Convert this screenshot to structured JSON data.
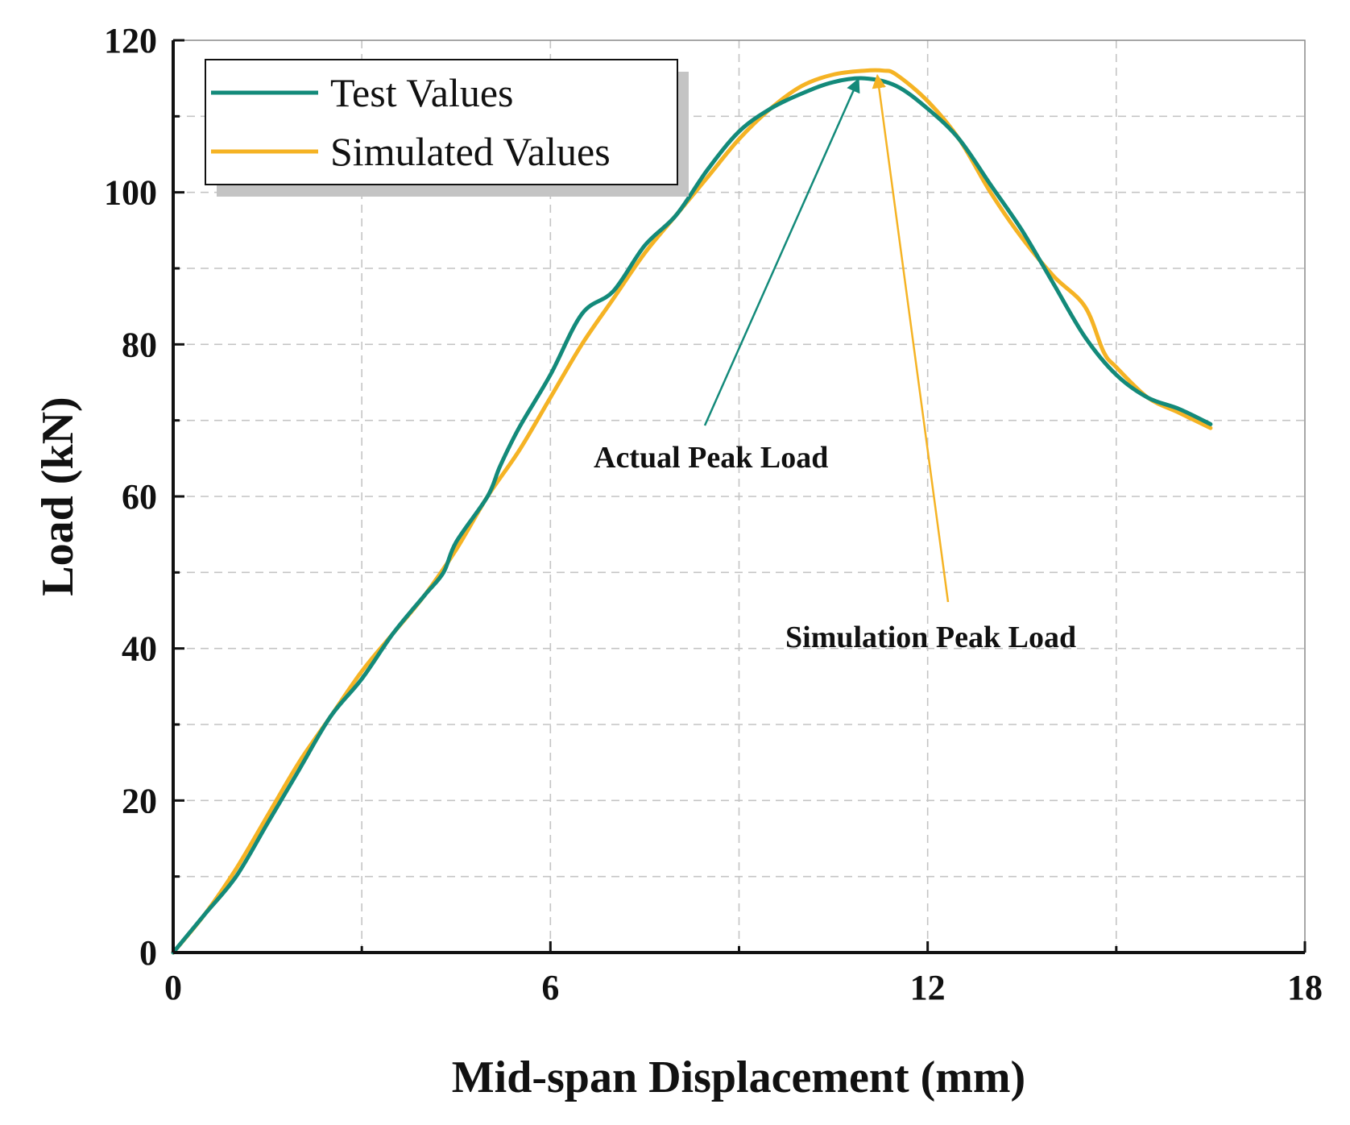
{
  "chart_data": {
    "type": "line",
    "xlabel": "Mid-span Displacement (mm)",
    "ylabel": "Load (kN)",
    "xlim": [
      0,
      18
    ],
    "ylim": [
      0,
      120
    ],
    "xticks": [
      0,
      6,
      12,
      18
    ],
    "yticks": [
      0,
      20,
      40,
      60,
      80,
      100,
      120
    ],
    "grid": true,
    "legend_position": "top-left",
    "series": [
      {
        "name": "Test Values",
        "color": "#138a7a",
        "x": [
          0,
          0.5,
          1.0,
          1.5,
          2.0,
          2.5,
          3.0,
          3.5,
          4.0,
          4.3,
          4.5,
          5.0,
          5.2,
          5.5,
          6.0,
          6.5,
          7.0,
          7.5,
          8.0,
          8.5,
          9.0,
          9.5,
          10.0,
          10.5,
          11.0,
          11.5,
          12.0,
          12.5,
          13.0,
          13.5,
          14.0,
          14.5,
          15.0,
          15.5,
          16.0,
          16.5
        ],
        "y": [
          0,
          5,
          10,
          17,
          24,
          31,
          36,
          42,
          47,
          50,
          54,
          60,
          64,
          69,
          76,
          84,
          87,
          93,
          97,
          103,
          108,
          111,
          113,
          114.5,
          115,
          114,
          111,
          107,
          101,
          95,
          88,
          81,
          76,
          73,
          71.5,
          69.5
        ]
      },
      {
        "name": "Simulated Values",
        "color": "#f5b324",
        "x": [
          0,
          0.5,
          1.0,
          1.5,
          2.0,
          2.5,
          3.0,
          3.5,
          4.0,
          4.5,
          5.0,
          5.5,
          6.0,
          6.5,
          7.0,
          7.5,
          8.0,
          8.5,
          9.0,
          9.5,
          10.0,
          10.5,
          11.0,
          11.3,
          11.5,
          12.0,
          12.5,
          13.0,
          13.5,
          14.0,
          14.5,
          14.8,
          15.0,
          15.5,
          16.0,
          16.5
        ],
        "y": [
          0,
          5,
          11,
          18,
          25,
          31,
          37,
          42,
          47,
          53,
          60,
          66,
          73,
          80,
          86,
          92,
          97,
          102,
          107,
          111,
          114,
          115.5,
          116,
          116,
          115.5,
          112,
          107,
          100,
          94,
          89,
          85,
          79,
          77,
          73,
          71,
          69
        ]
      }
    ],
    "annotations": [
      {
        "text": "Actual Peak Load",
        "target_x": 10.9,
        "target_y": 115.3,
        "color": "#138a7a"
      },
      {
        "text": "Simulation Peak Load",
        "target_x": 11.2,
        "target_y": 115.8,
        "color": "#f5b324"
      }
    ]
  }
}
